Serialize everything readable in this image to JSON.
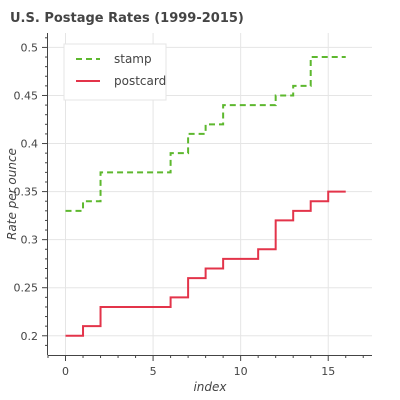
{
  "chart_data": {
    "type": "line",
    "step": true,
    "title": "U.S. Postage Rates (1999-2015)",
    "xlabel": "index",
    "ylabel": "Rate per ounce",
    "xlim": [
      -1,
      17.5
    ],
    "ylim": [
      0.18,
      0.515
    ],
    "x_ticks": [
      0,
      5,
      10,
      15
    ],
    "y_ticks": [
      0.2,
      0.25,
      0.3,
      0.35,
      0.4,
      0.45,
      0.5
    ],
    "grid": true,
    "legend_position": "top-left",
    "x": [
      0,
      1,
      2,
      3,
      4,
      5,
      6,
      7,
      8,
      9,
      10,
      11,
      12,
      13,
      14,
      15,
      16
    ],
    "series": [
      {
        "name": "stamp",
        "color": "#5db82e",
        "dash": "dashed",
        "values": [
          0.33,
          0.33,
          0.34,
          0.37,
          0.37,
          0.37,
          0.37,
          0.39,
          0.41,
          0.42,
          0.44,
          0.44,
          0.44,
          0.45,
          0.46,
          0.49,
          0.49
        ]
      },
      {
        "name": "postcard",
        "color": "#e3344a",
        "dash": "solid",
        "values": [
          0.2,
          0.2,
          0.21,
          0.23,
          0.23,
          0.23,
          0.23,
          0.24,
          0.26,
          0.27,
          0.28,
          0.28,
          0.29,
          0.32,
          0.33,
          0.34,
          0.35
        ]
      }
    ]
  }
}
